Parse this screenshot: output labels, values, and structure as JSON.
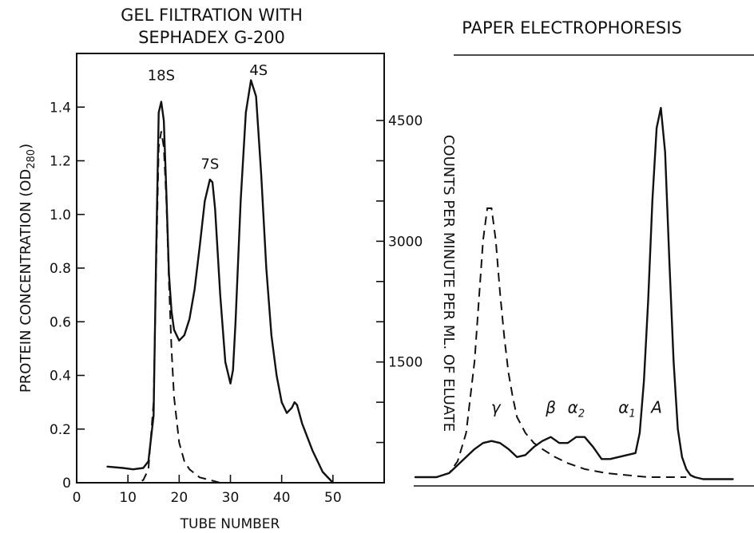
{
  "chart_data": [
    {
      "type": "line",
      "title_line1": "GEL FILTRATION WITH",
      "title_line2": "SEPHADEX G-200",
      "xlabel": "TUBE NUMBER",
      "ylabel_main": "PROTEIN CONCENTRATION (OD",
      "ylabel_sub": "280",
      "ylabel_end": ")",
      "y2label": "COUNTS PER MINUTE PER ML. OF ELUATE",
      "xlim": [
        0,
        60
      ],
      "ylim": [
        0,
        1.6
      ],
      "y2lim": [
        0,
        5333
      ],
      "xticks": [
        0,
        10,
        20,
        30,
        40,
        50
      ],
      "yticks": [
        0,
        0.2,
        0.4,
        0.6,
        0.8,
        1.0,
        1.2,
        1.4
      ],
      "ytick_labels": [
        "0",
        "0.2",
        "0.4",
        "0.6",
        "0.8",
        "1.0",
        "1.2",
        "1.4"
      ],
      "y2ticks": [
        1500,
        3000,
        4500
      ],
      "y2ticks_minor": [
        500,
        1000,
        2000,
        2500,
        3500,
        4000
      ],
      "annotations": [
        {
          "text": "18S",
          "x": 16.5,
          "y": 1.5
        },
        {
          "text": "7S",
          "x": 26,
          "y": 1.17
        },
        {
          "text": "4S",
          "x": 35.5,
          "y": 1.52
        }
      ],
      "series": [
        {
          "style": "solid",
          "axis": "left",
          "x": [
            6,
            9,
            11,
            13,
            14,
            15,
            15.5,
            16,
            16.5,
            17,
            17.5,
            18,
            18.5,
            19,
            20,
            21,
            22,
            23,
            24,
            25,
            26,
            26.5,
            27,
            28,
            29,
            30,
            30.5,
            31,
            32,
            33,
            34,
            35,
            36,
            37,
            38,
            39,
            40,
            41,
            42,
            42.5,
            43,
            44,
            46,
            48,
            50
          ],
          "y": [
            0.06,
            0.055,
            0.05,
            0.055,
            0.08,
            0.25,
            0.85,
            1.38,
            1.42,
            1.35,
            1.08,
            0.78,
            0.64,
            0.57,
            0.53,
            0.55,
            0.61,
            0.72,
            0.88,
            1.05,
            1.13,
            1.12,
            1.02,
            0.7,
            0.45,
            0.37,
            0.42,
            0.6,
            1.05,
            1.38,
            1.5,
            1.44,
            1.15,
            0.8,
            0.55,
            0.4,
            0.3,
            0.26,
            0.28,
            0.3,
            0.29,
            0.22,
            0.12,
            0.04,
            0.0
          ]
        },
        {
          "style": "dashed",
          "axis": "left",
          "x": [
            10,
            12,
            13,
            14,
            15,
            15.5,
            16,
            16.5,
            17,
            17.5,
            18,
            18.5,
            19,
            20,
            21,
            22,
            24,
            26,
            28,
            30
          ],
          "y": [
            0,
            0,
            0.01,
            0.05,
            0.3,
            0.8,
            1.25,
            1.31,
            1.25,
            1.05,
            0.75,
            0.5,
            0.32,
            0.15,
            0.08,
            0.05,
            0.02,
            0.01,
            0.0,
            0.0
          ]
        }
      ]
    },
    {
      "type": "line",
      "title": "PAPER ELECTROPHORESIS",
      "labels": [
        {
          "text": "γ",
          "x": 19,
          "y": 0.17
        },
        {
          "text": "β",
          "x": 32,
          "y": 0.17
        },
        {
          "text": "α",
          "sub": "2",
          "x": 38,
          "y": 0.17
        },
        {
          "text": "α",
          "sub": "1",
          "x": 50,
          "y": 0.17
        },
        {
          "text": "A",
          "x": 57,
          "y": 0.17
        }
      ],
      "series": [
        {
          "style": "solid",
          "x": [
            0,
            5,
            8,
            10,
            12,
            14,
            16,
            18,
            20,
            22,
            24,
            26,
            28,
            30,
            32,
            34,
            36,
            38,
            40,
            42,
            44,
            46,
            48,
            50,
            52,
            53,
            54,
            55,
            56,
            57,
            58,
            59,
            60,
            61,
            62,
            63,
            64,
            65,
            66,
            68,
            70,
            75
          ],
          "y": [
            0.01,
            0.01,
            0.02,
            0.04,
            0.06,
            0.08,
            0.095,
            0.1,
            0.095,
            0.08,
            0.06,
            0.065,
            0.085,
            0.1,
            0.11,
            0.095,
            0.095,
            0.11,
            0.11,
            0.085,
            0.055,
            0.055,
            0.06,
            0.065,
            0.07,
            0.12,
            0.25,
            0.45,
            0.7,
            0.88,
            0.93,
            0.82,
            0.55,
            0.3,
            0.13,
            0.06,
            0.03,
            0.015,
            0.01,
            0.005,
            0.005,
            0.005
          ]
        },
        {
          "style": "dashed",
          "x": [
            0,
            5,
            8,
            10,
            12,
            14,
            15,
            16,
            17,
            18,
            19,
            20,
            21,
            22,
            23,
            24,
            26,
            28,
            30,
            33,
            36,
            40,
            45,
            50,
            55,
            60,
            64
          ],
          "y": [
            0.01,
            0.01,
            0.02,
            0.05,
            0.12,
            0.3,
            0.45,
            0.6,
            0.68,
            0.68,
            0.6,
            0.47,
            0.36,
            0.27,
            0.21,
            0.16,
            0.12,
            0.095,
            0.08,
            0.06,
            0.045,
            0.03,
            0.02,
            0.015,
            0.01,
            0.01,
            0.01
          ]
        }
      ]
    }
  ]
}
